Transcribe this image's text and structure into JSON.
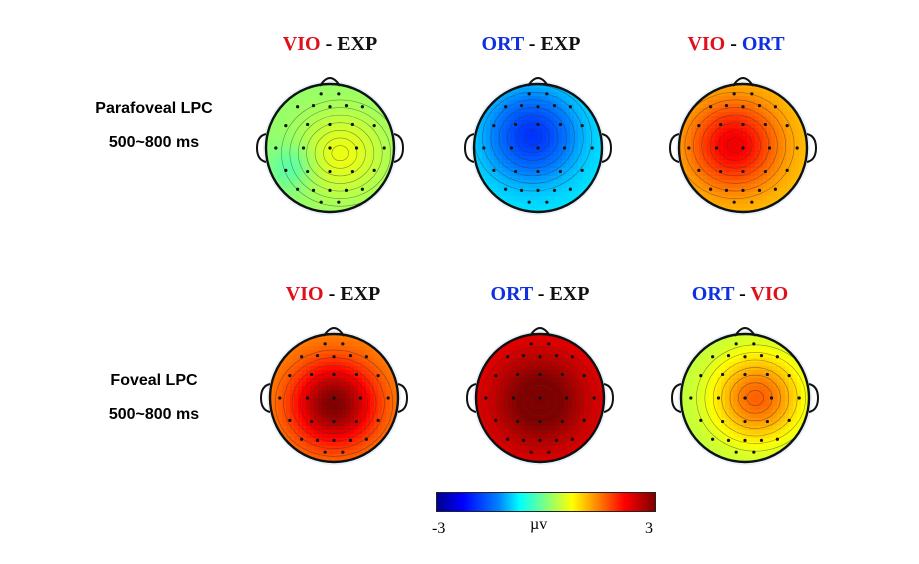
{
  "rows": [
    {
      "label_line1": "Parafoveal LPC",
      "label_line2": "500~800 ms",
      "maps": [
        {
          "title_left": "VIO",
          "title_sep": " - ",
          "title_right": "EXP",
          "left_color": "#e0101a",
          "right_color": "#111111",
          "pattern": "para_vio_exp",
          "value_uv": 0.0
        },
        {
          "title_left": "ORT",
          "title_sep": " - ",
          "title_right": "EXP",
          "left_color": "#1030e0",
          "right_color": "#111111",
          "pattern": "para_ort_exp",
          "value_uv": -1.5
        },
        {
          "title_left": "VIO",
          "title_sep": " - ",
          "title_right": "ORT",
          "left_color": "#e0101a",
          "right_color": "#1030e0",
          "pattern": "para_vio_ort",
          "value_uv": 1.8
        }
      ]
    },
    {
      "label_line1": "Foveal LPC",
      "label_line2": "500~800 ms",
      "maps": [
        {
          "title_left": "VIO",
          "title_sep": " - ",
          "title_right": "EXP",
          "left_color": "#e0101a",
          "right_color": "#111111",
          "pattern": "fov_vio_exp",
          "value_uv": 2.4
        },
        {
          "title_left": "ORT",
          "title_sep": " - ",
          "title_right": "EXP",
          "left_color": "#1030e0",
          "right_color": "#111111",
          "pattern": "fov_ort_exp",
          "value_uv": 2.9
        },
        {
          "title_left": "ORT",
          "title_sep": " - ",
          "title_right": "VIO",
          "left_color": "#1030e0",
          "right_color": "#e0101a",
          "pattern": "fov_ort_vio",
          "value_uv": 1.0
        }
      ]
    }
  ],
  "colorbar": {
    "min_label": "-3",
    "unit_label": "µv",
    "max_label": "3"
  }
}
